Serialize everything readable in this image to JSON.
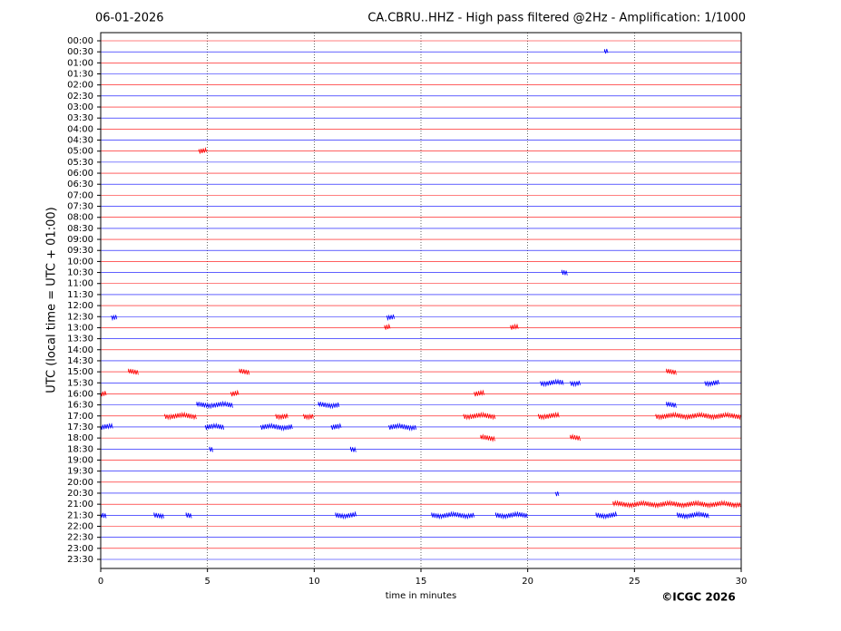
{
  "chart_data": {
    "type": "helicorder",
    "date": "06-01-2026",
    "title": "CA.CBRU..HHZ - High pass filtered @2Hz - Amplification: 1/1000",
    "ylabel": "UTC (local time = UTC + 01:00)",
    "xlabel": "time in minutes",
    "credit": "©ICGC 2026",
    "xlim": [
      0,
      30
    ],
    "xticks": [
      0,
      5,
      10,
      15,
      20,
      25,
      30
    ],
    "grid": true,
    "series": [
      {
        "name": "00:00",
        "color": "#ff0000",
        "bursts": []
      },
      {
        "name": "00:30",
        "color": "#0000ff",
        "bursts": [
          [
            23.6,
            23.8
          ]
        ]
      },
      {
        "name": "01:00",
        "color": "#ff0000",
        "bursts": []
      },
      {
        "name": "01:30",
        "color": "#0000ff",
        "bursts": []
      },
      {
        "name": "02:00",
        "color": "#ff0000",
        "bursts": []
      },
      {
        "name": "02:30",
        "color": "#0000ff",
        "bursts": []
      },
      {
        "name": "03:00",
        "color": "#ff0000",
        "bursts": []
      },
      {
        "name": "03:30",
        "color": "#0000ff",
        "bursts": []
      },
      {
        "name": "04:00",
        "color": "#ff0000",
        "bursts": []
      },
      {
        "name": "04:30",
        "color": "#0000ff",
        "bursts": []
      },
      {
        "name": "05:00",
        "color": "#ff0000",
        "bursts": [
          [
            4.6,
            5.0
          ]
        ]
      },
      {
        "name": "05:30",
        "color": "#0000ff",
        "bursts": []
      },
      {
        "name": "06:00",
        "color": "#ff0000",
        "bursts": []
      },
      {
        "name": "06:30",
        "color": "#0000ff",
        "bursts": []
      },
      {
        "name": "07:00",
        "color": "#ff0000",
        "bursts": []
      },
      {
        "name": "07:30",
        "color": "#0000ff",
        "bursts": []
      },
      {
        "name": "08:00",
        "color": "#ff0000",
        "bursts": []
      },
      {
        "name": "08:30",
        "color": "#0000ff",
        "bursts": []
      },
      {
        "name": "09:00",
        "color": "#ff0000",
        "bursts": []
      },
      {
        "name": "09:30",
        "color": "#0000ff",
        "bursts": []
      },
      {
        "name": "10:00",
        "color": "#ff0000",
        "bursts": []
      },
      {
        "name": "10:30",
        "color": "#0000ff",
        "bursts": [
          [
            21.6,
            21.9
          ]
        ]
      },
      {
        "name": "11:00",
        "color": "#ff0000",
        "bursts": []
      },
      {
        "name": "11:30",
        "color": "#0000ff",
        "bursts": []
      },
      {
        "name": "12:00",
        "color": "#ff0000",
        "bursts": []
      },
      {
        "name": "12:30",
        "color": "#0000ff",
        "bursts": [
          [
            0.5,
            0.8
          ],
          [
            13.4,
            13.8
          ]
        ]
      },
      {
        "name": "13:00",
        "color": "#ff0000",
        "bursts": [
          [
            13.3,
            13.6
          ],
          [
            19.2,
            19.6
          ]
        ]
      },
      {
        "name": "13:30",
        "color": "#0000ff",
        "bursts": []
      },
      {
        "name": "14:00",
        "color": "#ff0000",
        "bursts": []
      },
      {
        "name": "14:30",
        "color": "#0000ff",
        "bursts": []
      },
      {
        "name": "15:00",
        "color": "#ff0000",
        "bursts": [
          [
            1.3,
            1.8
          ],
          [
            6.5,
            7.0
          ],
          [
            26.5,
            27
          ]
        ]
      },
      {
        "name": "15:30",
        "color": "#0000ff",
        "bursts": [
          [
            20.6,
            21.7
          ],
          [
            22,
            22.5
          ],
          [
            28.3,
            29
          ]
        ]
      },
      {
        "name": "16:00",
        "color": "#ff0000",
        "bursts": [
          [
            0,
            0.3
          ],
          [
            6.1,
            6.5
          ],
          [
            17.5,
            18
          ]
        ]
      },
      {
        "name": "16:30",
        "color": "#0000ff",
        "bursts": [
          [
            4.5,
            6.2
          ],
          [
            10.2,
            11.2
          ],
          [
            26.5,
            27
          ]
        ]
      },
      {
        "name": "17:00",
        "color": "#ff0000",
        "bursts": [
          [
            3,
            4.5
          ],
          [
            8.2,
            8.8
          ],
          [
            9.5,
            10
          ],
          [
            17,
            18.5
          ],
          [
            20.5,
            21.5
          ],
          [
            26,
            30
          ]
        ]
      },
      {
        "name": "17:30",
        "color": "#0000ff",
        "bursts": [
          [
            0,
            0.6
          ],
          [
            4.9,
            5.8
          ],
          [
            7.5,
            9
          ],
          [
            10.8,
            11.3
          ],
          [
            13.5,
            14.8
          ]
        ]
      },
      {
        "name": "18:00",
        "color": "#ff0000",
        "bursts": [
          [
            17.8,
            18.5
          ],
          [
            22,
            22.5
          ]
        ]
      },
      {
        "name": "18:30",
        "color": "#0000ff",
        "bursts": [
          [
            5.1,
            5.3
          ],
          [
            11.7,
            12
          ]
        ]
      },
      {
        "name": "19:00",
        "color": "#ff0000",
        "bursts": []
      },
      {
        "name": "19:30",
        "color": "#0000ff",
        "bursts": []
      },
      {
        "name": "20:00",
        "color": "#ff0000",
        "bursts": []
      },
      {
        "name": "20:30",
        "color": "#0000ff",
        "bursts": [
          [
            21.3,
            21.5
          ]
        ]
      },
      {
        "name": "21:00",
        "color": "#ff0000",
        "bursts": [
          [
            24,
            30
          ]
        ]
      },
      {
        "name": "21:30",
        "color": "#0000ff",
        "bursts": [
          [
            0,
            0.3
          ],
          [
            2.5,
            3
          ],
          [
            4,
            4.3
          ],
          [
            11,
            12
          ],
          [
            15.5,
            17.5
          ],
          [
            18.5,
            20
          ],
          [
            23.2,
            24.2
          ],
          [
            27,
            28.5
          ]
        ]
      },
      {
        "name": "22:00",
        "color": "#ff0000",
        "bursts": []
      },
      {
        "name": "22:30",
        "color": "#0000ff",
        "bursts": []
      },
      {
        "name": "23:00",
        "color": "#ff0000",
        "bursts": []
      },
      {
        "name": "23:30",
        "color": "#0000ff",
        "bursts": []
      }
    ]
  }
}
